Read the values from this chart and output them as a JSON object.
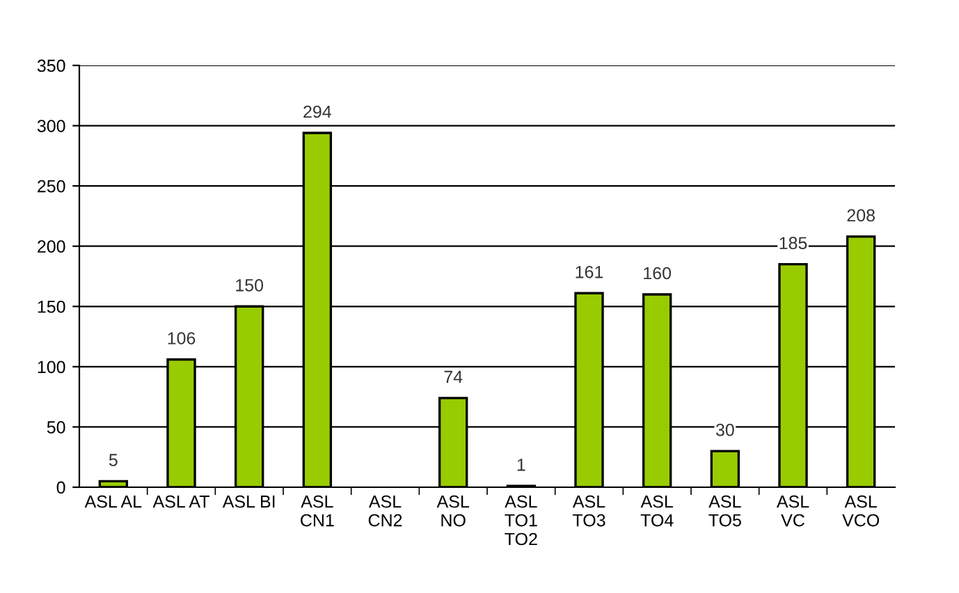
{
  "chart_data": {
    "type": "bar",
    "categories": [
      "ASL AL",
      "ASL AT",
      "ASL BI",
      "ASL\nCN1",
      "ASL\nCN2",
      "ASL\nNO",
      "ASL\nTO1\nTO2",
      "ASL\nTO3",
      "ASL\nTO4",
      "ASL\nTO5",
      "ASL\nVC",
      "ASL\nVCO"
    ],
    "values": [
      5,
      106,
      150,
      294,
      0,
      74,
      1,
      161,
      160,
      30,
      185,
      208
    ],
    "value_labels": [
      "5",
      "106",
      "150",
      "294",
      null,
      "74",
      "1",
      "161",
      "160",
      "30",
      "185",
      "208"
    ],
    "color": "#99cc00",
    "ylim": [
      0,
      350
    ],
    "yticks": [
      0,
      50,
      100,
      150,
      200,
      250,
      300,
      350
    ],
    "grid": "y",
    "legend": false
  }
}
